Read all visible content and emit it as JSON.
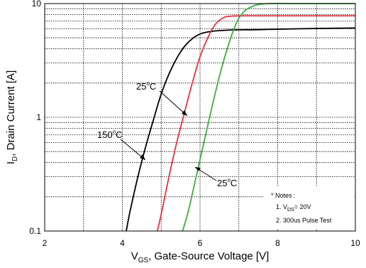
{
  "chart_data": {
    "type": "line",
    "x_axis": {
      "label_main": "V",
      "label_sub": "GS",
      "label_rest": ", Gate-Source Voltage [V]",
      "range": [
        2,
        10
      ],
      "ticks": [
        "2",
        "4",
        "6",
        "8",
        "10"
      ]
    },
    "y_axis": {
      "label_main": "I",
      "label_sub": "D",
      "label_rest": ", Drain Current [A]",
      "scale": "log",
      "range": [
        0.1,
        10
      ],
      "ticks": [
        "0.1",
        "1",
        "10"
      ],
      "tick_values": [
        0.1,
        1,
        10
      ]
    },
    "grid": true,
    "series": [
      {
        "color": "#000000",
        "points": [
          [
            4.1,
            0.1
          ],
          [
            4.2,
            0.15
          ],
          [
            4.4,
            0.3
          ],
          [
            4.6,
            0.55
          ],
          [
            4.8,
            0.95
          ],
          [
            5.0,
            1.6
          ],
          [
            5.2,
            2.4
          ],
          [
            5.4,
            3.3
          ],
          [
            5.6,
            4.2
          ],
          [
            5.8,
            4.9
          ],
          [
            6.0,
            5.4
          ],
          [
            6.3,
            5.7
          ],
          [
            6.8,
            5.85
          ],
          [
            7.5,
            5.9
          ],
          [
            8.5,
            6.0
          ],
          [
            10,
            6.1
          ]
        ]
      },
      {
        "color": "#e8323c",
        "points": [
          [
            4.9,
            0.1
          ],
          [
            5.0,
            0.14
          ],
          [
            5.2,
            0.3
          ],
          [
            5.4,
            0.6
          ],
          [
            5.6,
            1.1
          ],
          [
            5.8,
            2.0
          ],
          [
            6.0,
            3.4
          ],
          [
            6.2,
            5.0
          ],
          [
            6.4,
            6.6
          ],
          [
            6.6,
            7.5
          ],
          [
            6.8,
            7.75
          ],
          [
            7.2,
            7.8
          ],
          [
            8.0,
            7.8
          ],
          [
            10,
            7.8
          ]
        ]
      },
      {
        "color": "#3fae3f",
        "points": [
          [
            5.55,
            0.1
          ],
          [
            5.7,
            0.15
          ],
          [
            5.9,
            0.3
          ],
          [
            6.1,
            0.6
          ],
          [
            6.3,
            1.2
          ],
          [
            6.5,
            2.3
          ],
          [
            6.7,
            4.0
          ],
          [
            6.9,
            6.3
          ],
          [
            7.1,
            8.3
          ],
          [
            7.4,
            9.6
          ],
          [
            7.8,
            10
          ],
          [
            8.5,
            10
          ],
          [
            10,
            10
          ]
        ]
      }
    ],
    "annotations": [
      {
        "base": "150",
        "deg": "o",
        "unit": "C"
      },
      {
        "base": "25",
        "deg": "o",
        "unit": "C"
      },
      {
        "base": "25",
        "deg": "o",
        "unit": "C"
      }
    ],
    "notes": {
      "title": "* Notes :",
      "line1_prefix": "1. V",
      "line1_sub": "DS",
      "line1_suffix": "= 20V",
      "line2": "2. 300us Pulse Test"
    }
  }
}
